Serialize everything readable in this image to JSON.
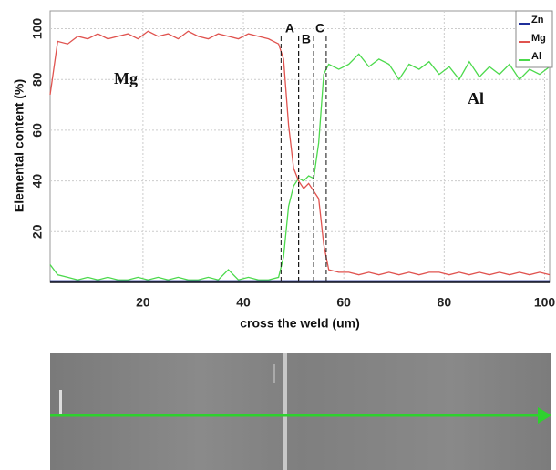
{
  "chart_data": {
    "type": "line",
    "xlabel": "cross the weld (um)",
    "ylabel": "Elemental content (%)",
    "x": [
      1.5,
      3,
      5,
      7,
      9,
      11,
      13,
      15,
      17,
      19,
      21,
      23,
      25,
      27,
      29,
      31,
      33,
      35,
      37,
      39,
      41,
      43,
      45,
      47,
      48,
      49,
      50,
      51,
      52,
      53,
      54,
      55,
      56,
      57,
      59,
      61,
      63,
      65,
      67,
      69,
      71,
      73,
      75,
      77,
      79,
      81,
      83,
      85,
      87,
      89,
      91,
      93,
      95,
      97,
      99,
      101
    ],
    "series": [
      {
        "name": "Zn",
        "color": "#1f2f9a",
        "values": [
          0.3,
          0.3,
          0.3,
          0.3,
          0.3,
          0.3,
          0.3,
          0.3,
          0.3,
          0.3,
          0.3,
          0.3,
          0.3,
          0.3,
          0.3,
          0.3,
          0.3,
          0.3,
          0.3,
          0.3,
          0.3,
          0.3,
          0.3,
          0.3,
          0.3,
          0.3,
          0.3,
          0.3,
          0.3,
          0.3,
          0.3,
          0.3,
          0.3,
          0.3,
          0.3,
          0.3,
          0.3,
          0.3,
          0.3,
          0.3,
          0.3,
          0.3,
          0.3,
          0.3,
          0.3,
          0.3,
          0.3,
          0.3,
          0.3,
          0.3,
          0.3,
          0.3,
          0.3,
          0.3,
          0.3,
          0.3
        ]
      },
      {
        "name": "Mg",
        "color": "#e0534f",
        "values": [
          74,
          95,
          94,
          97,
          96,
          98,
          96,
          97,
          98,
          96,
          99,
          97,
          98,
          96,
          99,
          97,
          96,
          98,
          97,
          96,
          98,
          97,
          96,
          94,
          88,
          62,
          45,
          40,
          37,
          39,
          36,
          33,
          15,
          5,
          4,
          4,
          3,
          4,
          3,
          4,
          3,
          4,
          3,
          4,
          4,
          3,
          4,
          3,
          4,
          3,
          4,
          3,
          4,
          3,
          4,
          3
        ]
      },
      {
        "name": "Al",
        "color": "#4cd94c",
        "values": [
          7,
          3,
          2,
          1,
          2,
          1,
          2,
          1,
          1,
          2,
          1,
          2,
          1,
          2,
          1,
          1,
          2,
          1,
          5,
          1,
          2,
          1,
          1,
          2,
          10,
          30,
          38,
          41,
          40,
          42,
          41,
          55,
          82,
          86,
          84,
          86,
          90,
          85,
          88,
          86,
          80,
          86,
          84,
          87,
          82,
          85,
          80,
          87,
          81,
          85,
          82,
          86,
          80,
          84,
          82,
          85
        ]
      }
    ],
    "xlim": [
      1.5,
      101
    ],
    "ylim": [
      0,
      107
    ],
    "xticks": [
      20,
      40,
      60,
      80,
      100
    ],
    "yticks": [
      20,
      40,
      60,
      80,
      100
    ],
    "grid": true,
    "legend": "top-right",
    "zones": [
      {
        "label": "A",
        "from": 47.5,
        "to": 51
      },
      {
        "label": "B",
        "from": 51,
        "to": 54
      },
      {
        "label": "C",
        "from": 54,
        "to": 56.5
      }
    ],
    "annotations": [
      "Mg",
      "Al"
    ]
  }
}
